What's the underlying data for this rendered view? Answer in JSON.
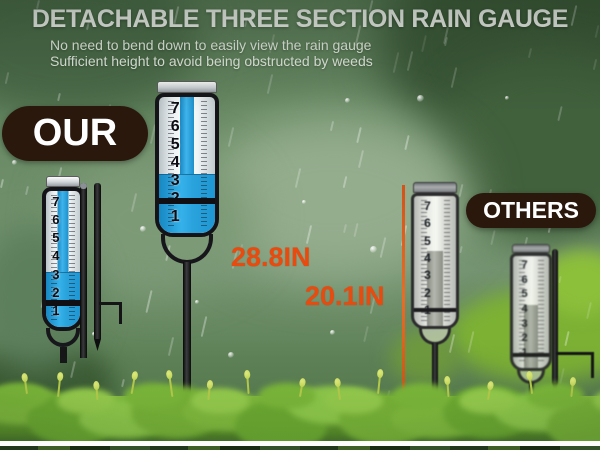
{
  "header": {
    "title": "DETACHABLE THREE SECTION RAIN GAUGE",
    "subtitle_line1": "No need to bend down to easily view the rain gauge",
    "subtitle_line2": "Sufficient height to avoid being obstructed by weeds"
  },
  "comparison": {
    "our_label": "OUR",
    "others_label": "OTHERS",
    "our_height": "28.8IN",
    "others_height": "20.1IN"
  },
  "gauges": {
    "our_detached": {
      "scale_numbers": [
        "7",
        "6",
        "5",
        "4",
        "3",
        "2",
        "1"
      ],
      "water_fill_percent": 40
    },
    "our_assembled": {
      "scale_numbers": [
        "7",
        "6",
        "5",
        "4",
        "3",
        "2",
        "1"
      ],
      "water_fill_percent": 43
    },
    "others_1": {
      "scale_numbers": [
        "7",
        "6",
        "5",
        "4",
        "3",
        "2",
        "1"
      ]
    },
    "others_2": {
      "scale_numbers": [
        "7",
        "6",
        "5",
        "4",
        "3",
        "2",
        "1"
      ]
    }
  },
  "colors": {
    "accent_red": "#EA4A0D",
    "water_blue": "#2AA2DE",
    "pill_brown": "#2A180D",
    "title_white": "#F4F6F2"
  }
}
